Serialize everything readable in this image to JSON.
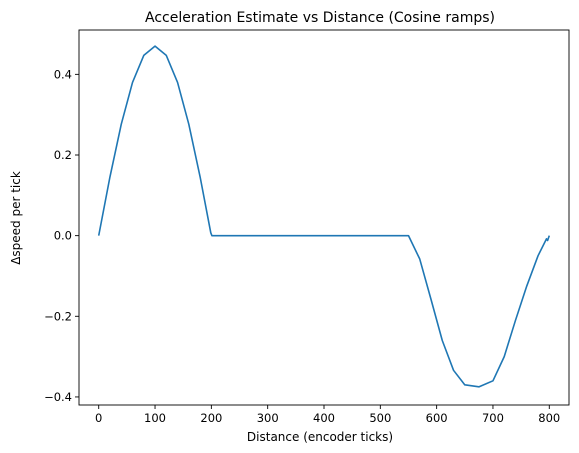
{
  "chart_data": {
    "type": "line",
    "title": "Acceleration Estimate vs Distance (Cosine ramps)",
    "xlabel": "Distance (encoder ticks)",
    "ylabel": "Δspeed per tick",
    "xlim": [
      -35,
      835
    ],
    "ylim": [
      -0.42,
      0.51
    ],
    "xticks": [
      0,
      100,
      200,
      300,
      400,
      500,
      600,
      700,
      800
    ],
    "xtick_labels": [
      "0",
      "100",
      "200",
      "300",
      "400",
      "500",
      "600",
      "700",
      "800"
    ],
    "yticks": [
      -0.4,
      -0.2,
      0.0,
      0.2,
      0.4
    ],
    "ytick_labels": [
      "−0.4",
      "−0.2",
      "0.0",
      "0.2",
      "0.4"
    ],
    "grid": false,
    "line_color": "#1f77b4",
    "series": [
      {
        "x": [
          0,
          20,
          40,
          60,
          80,
          100,
          120,
          140,
          160,
          180,
          199,
          201,
          300,
          400,
          500,
          550,
          570,
          590,
          610,
          630,
          650,
          675,
          700,
          720,
          740,
          760,
          780,
          795,
          797,
          800
        ],
        "values": [
          0.0,
          0.146,
          0.276,
          0.38,
          0.447,
          0.47,
          0.447,
          0.38,
          0.276,
          0.146,
          0.007,
          0.0,
          0.0,
          0.0,
          0.0,
          0.0,
          -0.058,
          -0.158,
          -0.26,
          -0.334,
          -0.37,
          -0.375,
          -0.36,
          -0.3,
          -0.21,
          -0.125,
          -0.05,
          -0.008,
          -0.012,
          0.0
        ]
      }
    ]
  }
}
